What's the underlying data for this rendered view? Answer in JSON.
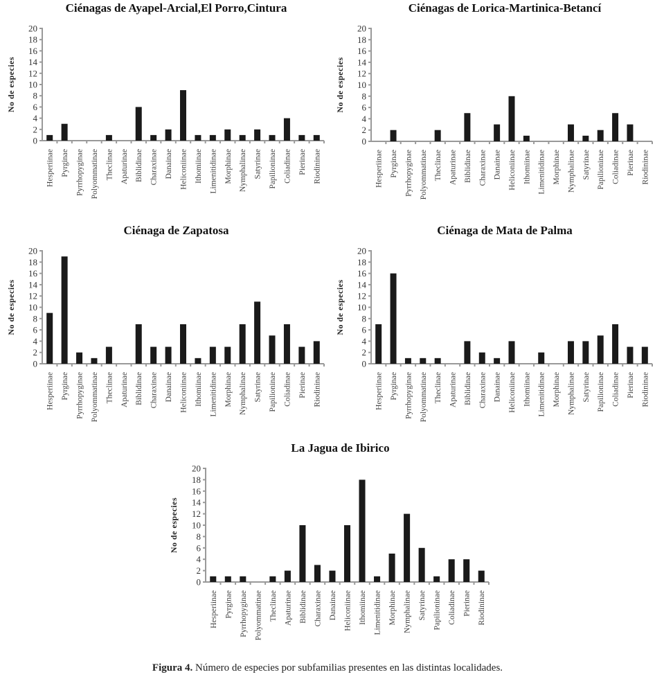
{
  "caption": {
    "label": "Figura 4.",
    "text": "Número de especies por subfamilias presentes en las distintas localidades."
  },
  "chart_data": [
    {
      "type": "bar",
      "title": "Ciénagas de Ayapel-Arcial,El Porro,Cintura",
      "xlabel": "",
      "ylabel": "No de especies",
      "ylim": [
        0,
        20
      ],
      "yticks": [
        0,
        2,
        4,
        6,
        8,
        10,
        12,
        14,
        16,
        18,
        20
      ],
      "grid": false,
      "categories": [
        "Hesperiinae",
        "Pyrginae",
        "Pyrrhopyginae",
        "Polyommatinae",
        "Theclinae",
        "Apaturinae",
        "Biblidinae",
        "Charaxinae",
        "Danainae",
        "Heliconiinae",
        "Ithomiinae",
        "Limenitidinae",
        "Morphinae",
        "Nymphalinae",
        "Satyrinae",
        "Papilioninae",
        "Coliadinae",
        "Pierinae",
        "Riodininae"
      ],
      "values": [
        1,
        3,
        0,
        0,
        1,
        0,
        6,
        1,
        2,
        9,
        1,
        1,
        2,
        1,
        2,
        1,
        4,
        1,
        1
      ]
    },
    {
      "type": "bar",
      "title": "Ciénagas de Lorica-Martinica-Betancí",
      "xlabel": "",
      "ylabel": "No de especies",
      "ylim": [
        0,
        20
      ],
      "yticks": [
        0,
        2,
        4,
        6,
        8,
        10,
        12,
        14,
        16,
        18,
        20
      ],
      "grid": false,
      "categories": [
        "Hesperiinae",
        "Pyrginae",
        "Pyrrhopyginae",
        "Polyommatinae",
        "Theclinae",
        "Apaturinae",
        "Biblidinae",
        "Charaxinae",
        "Danainae",
        "Heliconiinae",
        "Ithomiinae",
        "Limenitidinae",
        "Morphinae",
        "Nymphalinae",
        "Satyrinae",
        "Papilioninae",
        "Coliadinae",
        "Pierinae",
        "Riodininae"
      ],
      "values": [
        0,
        2,
        0,
        0,
        2,
        0,
        5,
        0,
        3,
        8,
        1,
        0,
        0,
        3,
        1,
        2,
        5,
        3,
        0
      ]
    },
    {
      "type": "bar",
      "title": "Ciénaga de Zapatosa",
      "xlabel": "",
      "ylabel": "No de especies",
      "ylim": [
        0,
        20
      ],
      "yticks": [
        0,
        2,
        4,
        6,
        8,
        10,
        12,
        14,
        16,
        18,
        20
      ],
      "grid": false,
      "categories": [
        "Hesperiinae",
        "Pyrginae",
        "Pyrrhopyginae",
        "Polyommatinae",
        "Theclinae",
        "Apaturinae",
        "Biblidinae",
        "Charaxinae",
        "Danainae",
        "Heliconiinae",
        "Ithomiinae",
        "Limenitidinae",
        "Morphinae",
        "Nymphalinae",
        "Satyrinae",
        "Papilioninae",
        "Coliadinae",
        "Pierinae",
        "Riodininae"
      ],
      "values": [
        9,
        19,
        2,
        1,
        3,
        0,
        7,
        3,
        3,
        7,
        1,
        3,
        3,
        7,
        11,
        5,
        7,
        3,
        4
      ]
    },
    {
      "type": "bar",
      "title": "Ciénaga de Mata de Palma",
      "xlabel": "",
      "ylabel": "No de especies",
      "ylim": [
        0,
        20
      ],
      "yticks": [
        0,
        2,
        4,
        6,
        8,
        10,
        12,
        14,
        16,
        18,
        20
      ],
      "grid": false,
      "categories": [
        "Hesperiinae",
        "Pyrginae",
        "Pyrrhopyginae",
        "Polyommatinae",
        "Theclinae",
        "Apaturinae",
        "Biblidinae",
        "Charaxinae",
        "Danainae",
        "Heliconiinae",
        "Ithomiinae",
        "Limenitidinae",
        "Morphinae",
        "Nymphalinae",
        "Satyrinae",
        "Papilioninae",
        "Coliadinae",
        "Pierinae",
        "Riodininae"
      ],
      "values": [
        7,
        16,
        1,
        1,
        1,
        0,
        4,
        2,
        1,
        4,
        0,
        2,
        0,
        4,
        4,
        5,
        7,
        3,
        3
      ]
    },
    {
      "type": "bar",
      "title": "La Jagua de Ibirico",
      "xlabel": "",
      "ylabel": "No de especies",
      "ylim": [
        0,
        20
      ],
      "yticks": [
        0,
        2,
        4,
        6,
        8,
        10,
        12,
        14,
        16,
        18,
        20
      ],
      "grid": false,
      "categories": [
        "Hesperiinae",
        "Pyrginae",
        "Pyrrhopyginae",
        "Polyommatinae",
        "Theclinae",
        "Apaturinae",
        "Biblidinae",
        "Charaxinae",
        "Danainae",
        "Heliconiinae",
        "Ithomiinae",
        "Limenitidinae",
        "Morphinae",
        "Nymphalinae",
        "Satyrinae",
        "Papilioninae",
        "Coliadinae",
        "Pierinae",
        "Riodininae"
      ],
      "values": [
        1,
        1,
        1,
        0,
        1,
        2,
        10,
        3,
        2,
        10,
        18,
        1,
        5,
        12,
        6,
        1,
        4,
        4,
        2
      ]
    }
  ]
}
